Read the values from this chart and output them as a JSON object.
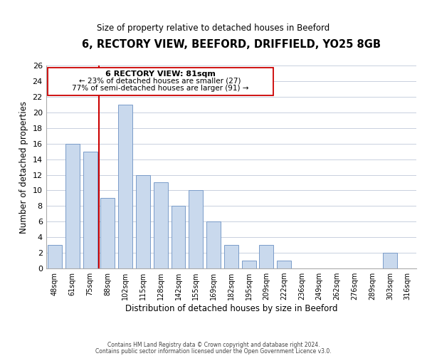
{
  "title": "6, RECTORY VIEW, BEEFORD, DRIFFIELD, YO25 8GB",
  "subtitle": "Size of property relative to detached houses in Beeford",
  "xlabel": "Distribution of detached houses by size in Beeford",
  "ylabel": "Number of detached properties",
  "bin_labels": [
    "48sqm",
    "61sqm",
    "75sqm",
    "88sqm",
    "102sqm",
    "115sqm",
    "128sqm",
    "142sqm",
    "155sqm",
    "169sqm",
    "182sqm",
    "195sqm",
    "209sqm",
    "222sqm",
    "236sqm",
    "249sqm",
    "262sqm",
    "276sqm",
    "289sqm",
    "303sqm",
    "316sqm"
  ],
  "bar_heights": [
    3,
    16,
    15,
    9,
    21,
    12,
    11,
    8,
    10,
    6,
    3,
    1,
    3,
    1,
    0,
    0,
    0,
    0,
    0,
    2,
    0
  ],
  "bar_color": "#c9d9ed",
  "bar_edge_color": "#7a9cc9",
  "grid_color": "#c8d0de",
  "vline_color": "#cc0000",
  "annotation_title": "6 RECTORY VIEW: 81sqm",
  "annotation_line1": "← 23% of detached houses are smaller (27)",
  "annotation_line2": "77% of semi-detached houses are larger (91) →",
  "annotation_box_color": "#ffffff",
  "annotation_box_edge": "#cc0000",
  "ylim": [
    0,
    26
  ],
  "yticks": [
    0,
    2,
    4,
    6,
    8,
    10,
    12,
    14,
    16,
    18,
    20,
    22,
    24,
    26
  ],
  "footer1": "Contains HM Land Registry data © Crown copyright and database right 2024.",
  "footer2": "Contains public sector information licensed under the Open Government Licence v3.0."
}
